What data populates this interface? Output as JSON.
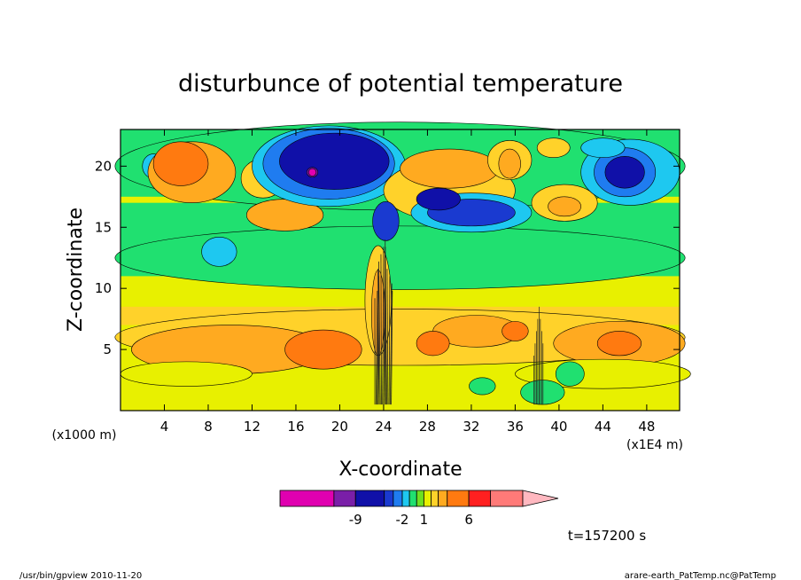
{
  "chart_data": {
    "type": "heatmap",
    "title": "disturbunce of potential temperature",
    "xlabel": "X-coordinate",
    "ylabel": "Z-coordinate",
    "x_unit_left": "(x1000 m)",
    "x_unit_right": "(x1E4 m)",
    "x_ticks": [
      "4",
      "8",
      "12",
      "16",
      "20",
      "24",
      "28",
      "32",
      "36",
      "40",
      "44",
      "48"
    ],
    "y_ticks": [
      "5",
      "10",
      "15",
      "20"
    ],
    "xlim": [
      0,
      51
    ],
    "ylim": [
      0,
      23
    ],
    "colorbar": {
      "colors": [
        "#e000b0",
        "#7a1fa8",
        "#1010a8",
        "#1a3ad0",
        "#1f7cf0",
        "#1ec8f0",
        "#20e070",
        "#6ee020",
        "#e8f000",
        "#ffd22a",
        "#ffaa20",
        "#ff7a10",
        "#ff2020",
        "#ff7a78",
        "#ffb8c0"
      ],
      "labels": [
        "-9",
        "-2",
        "1",
        "6"
      ]
    },
    "time_label": "t=157200 s"
  },
  "footer": {
    "left": "/usr/bin/gpview  2010-11-20",
    "right": "arare-earth_PatTemp.nc@PatTemp"
  }
}
